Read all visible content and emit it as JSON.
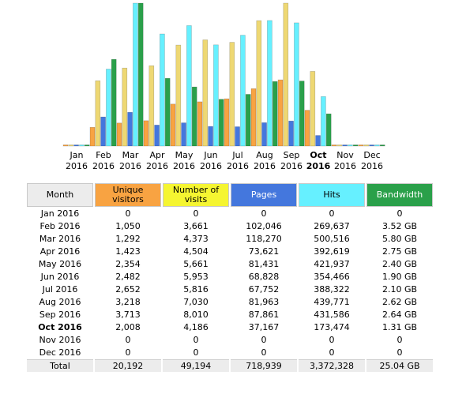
{
  "colors": {
    "unique_visitors": "#f8a342",
    "number_of_visits": "#eed873",
    "pages": "#4477dd",
    "hits": "#66f0ff",
    "bandwidth": "#2aa04a",
    "header_gray": "#ececec"
  },
  "table": {
    "headers": {
      "month": "Month",
      "unique_visitors": "Unique visitors",
      "number_of_visits": "Number of visits",
      "pages": "Pages",
      "hits": "Hits",
      "bandwidth": "Bandwidth"
    },
    "rows": [
      {
        "month": "Jan 2016",
        "uv": "0",
        "visits": "0",
        "pages": "0",
        "hits": "0",
        "bw": "0"
      },
      {
        "month": "Feb 2016",
        "uv": "1,050",
        "visits": "3,661",
        "pages": "102,046",
        "hits": "269,637",
        "bw": "3.52 GB"
      },
      {
        "month": "Mar 2016",
        "uv": "1,292",
        "visits": "4,373",
        "pages": "118,270",
        "hits": "500,516",
        "bw": "5.80 GB"
      },
      {
        "month": "Apr 2016",
        "uv": "1,423",
        "visits": "4,504",
        "pages": "73,621",
        "hits": "392,619",
        "bw": "2.75 GB"
      },
      {
        "month": "May 2016",
        "uv": "2,354",
        "visits": "5,661",
        "pages": "81,431",
        "hits": "421,937",
        "bw": "2.40 GB"
      },
      {
        "month": "Jun 2016",
        "uv": "2,482",
        "visits": "5,953",
        "pages": "68,828",
        "hits": "354,466",
        "bw": "1.90 GB"
      },
      {
        "month": "Jul 2016",
        "uv": "2,652",
        "visits": "5,816",
        "pages": "67,752",
        "hits": "388,322",
        "bw": "2.10 GB"
      },
      {
        "month": "Aug 2016",
        "uv": "3,218",
        "visits": "7,030",
        "pages": "81,963",
        "hits": "439,771",
        "bw": "2.62 GB"
      },
      {
        "month": "Sep 2016",
        "uv": "3,713",
        "visits": "8,010",
        "pages": "87,861",
        "hits": "431,586",
        "bw": "2.64 GB"
      },
      {
        "month": "Oct 2016",
        "uv": "2,008",
        "visits": "4,186",
        "pages": "37,167",
        "hits": "173,474",
        "bw": "1.31 GB"
      },
      {
        "month": "Nov 2016",
        "uv": "0",
        "visits": "0",
        "pages": "0",
        "hits": "0",
        "bw": "0"
      },
      {
        "month": "Dec 2016",
        "uv": "0",
        "visits": "0",
        "pages": "0",
        "hits": "0",
        "bw": "0"
      }
    ],
    "total": {
      "label": "Total",
      "uv": "20,192",
      "visits": "49,194",
      "pages": "718,939",
      "hits": "3,372,328",
      "bw": "25.04 GB"
    }
  },
  "chart_data": {
    "type": "bar",
    "current_month": "Oct",
    "categories": [
      "Jan",
      "Feb",
      "Mar",
      "Apr",
      "May",
      "Jun",
      "Jul",
      "Aug",
      "Sep",
      "Oct",
      "Nov",
      "Dec"
    ],
    "years": [
      "2016",
      "2016",
      "2016",
      "2016",
      "2016",
      "2016",
      "2016",
      "2016",
      "2016",
      "2016",
      "2016",
      "2016"
    ],
    "series": [
      {
        "name": "Unique visitors",
        "values": [
          0,
          1050,
          1292,
          1423,
          2354,
          2482,
          2652,
          3218,
          3713,
          2008,
          0,
          0
        ]
      },
      {
        "name": "Number of visits",
        "values": [
          0,
          3661,
          4373,
          4504,
          5661,
          5953,
          5816,
          7030,
          8010,
          4186,
          0,
          0
        ]
      },
      {
        "name": "Pages",
        "values": [
          0,
          102046,
          118270,
          73621,
          81431,
          68828,
          67752,
          81963,
          87861,
          37167,
          0,
          0
        ]
      },
      {
        "name": "Hits",
        "values": [
          0,
          269637,
          500516,
          392619,
          421937,
          354466,
          388322,
          439771,
          431586,
          173474,
          0,
          0
        ]
      },
      {
        "name": "Bandwidth",
        "values": [
          0,
          3.52,
          5.8,
          2.75,
          2.4,
          1.9,
          2.1,
          2.62,
          2.64,
          1.31,
          0,
          0
        ]
      }
    ]
  }
}
